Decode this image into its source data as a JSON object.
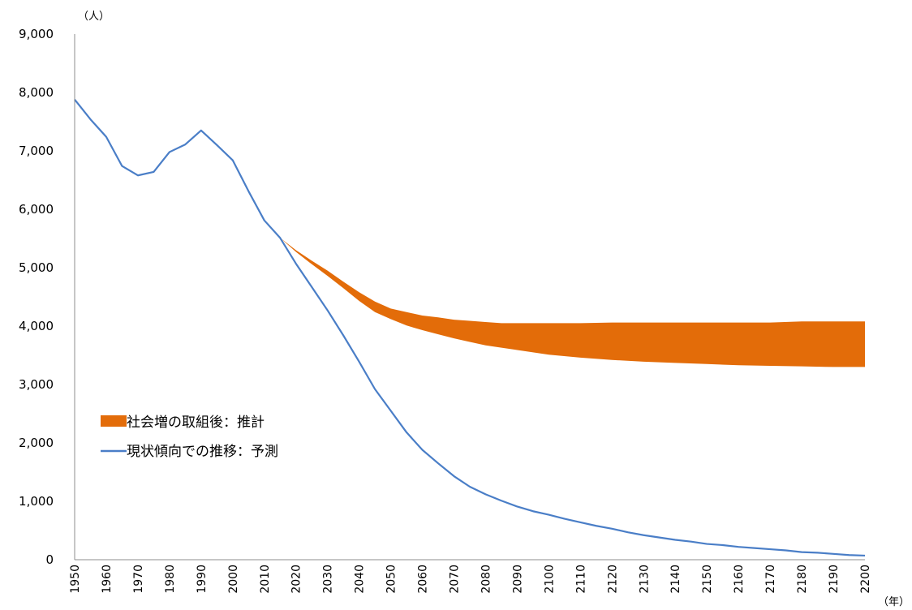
{
  "chart_data": {
    "type": "line",
    "y_unit": "（人）",
    "x_unit": "（年）",
    "ylim": [
      0,
      9000
    ],
    "y_ticks": [
      "0",
      "1,000",
      "2,000",
      "3,000",
      "4,000",
      "5,000",
      "6,000",
      "7,000",
      "8,000",
      "9,000"
    ],
    "y_tick_values": [
      0,
      1000,
      2000,
      3000,
      4000,
      5000,
      6000,
      7000,
      8000,
      9000
    ],
    "x_ticks": [
      "1950",
      "1960",
      "1970",
      "1980",
      "1990",
      "2000",
      "2010",
      "2020",
      "2030",
      "2040",
      "2050",
      "2060",
      "2070",
      "2080",
      "2090",
      "2100",
      "2110",
      "2120",
      "2130",
      "2140",
      "2150",
      "2160",
      "2170",
      "2180",
      "2190",
      "2200"
    ],
    "xlim": [
      1950,
      2200
    ],
    "grid": false,
    "legend_position": "left-middle",
    "series": [
      {
        "name": "社会増の取組後：推計",
        "kind": "band",
        "color": "#E36C09",
        "x": [
          2015,
          2020,
          2025,
          2030,
          2035,
          2040,
          2045,
          2050,
          2055,
          2060,
          2065,
          2070,
          2075,
          2080,
          2085,
          2090,
          2100,
          2110,
          2120,
          2130,
          2140,
          2150,
          2160,
          2170,
          2180,
          2190,
          2200
        ],
        "upper": [
          5510,
          5300,
          5120,
          4950,
          4760,
          4580,
          4420,
          4300,
          4240,
          4180,
          4150,
          4110,
          4090,
          4070,
          4050,
          4050,
          4050,
          4050,
          4060,
          4060,
          4060,
          4060,
          4060,
          4060,
          4080,
          4080,
          4080
        ],
        "lower": [
          5510,
          5270,
          5060,
          4860,
          4650,
          4430,
          4240,
          4120,
          4010,
          3930,
          3860,
          3790,
          3730,
          3670,
          3630,
          3590,
          3510,
          3460,
          3420,
          3390,
          3370,
          3350,
          3330,
          3320,
          3310,
          3300,
          3300
        ]
      },
      {
        "name": "現状傾向での推移：予測",
        "kind": "line",
        "color": "#4A7EC7",
        "x": [
          1950,
          1955,
          1960,
          1965,
          1970,
          1975,
          1980,
          1985,
          1990,
          1995,
          2000,
          2005,
          2010,
          2015,
          2020,
          2025,
          2030,
          2035,
          2040,
          2045,
          2050,
          2055,
          2060,
          2065,
          2070,
          2075,
          2080,
          2085,
          2090,
          2095,
          2100,
          2105,
          2110,
          2115,
          2120,
          2125,
          2130,
          2135,
          2140,
          2145,
          2150,
          2155,
          2160,
          2165,
          2170,
          2175,
          2180,
          2185,
          2190,
          2195,
          2200
        ],
        "values": [
          7880,
          7540,
          7240,
          6740,
          6580,
          6640,
          6980,
          7110,
          7350,
          7100,
          6840,
          6310,
          5810,
          5510,
          5070,
          4670,
          4270,
          3840,
          3390,
          2920,
          2550,
          2180,
          1880,
          1650,
          1430,
          1250,
          1120,
          1010,
          910,
          830,
          770,
          700,
          640,
          580,
          530,
          470,
          420,
          380,
          340,
          310,
          270,
          250,
          220,
          200,
          180,
          160,
          130,
          120,
          100,
          80,
          70
        ]
      }
    ]
  }
}
